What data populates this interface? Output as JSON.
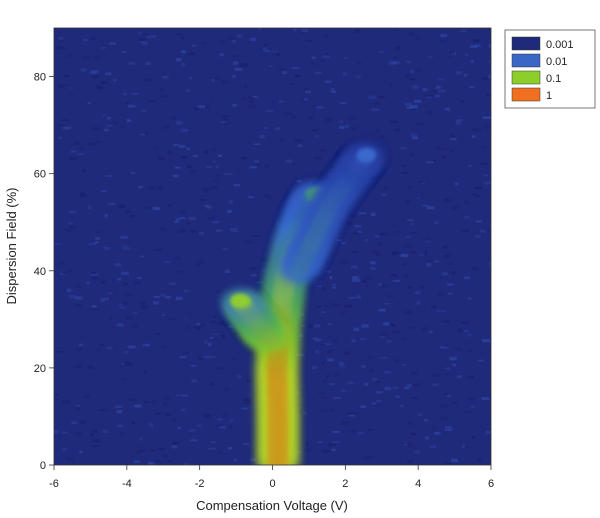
{
  "chart_data": {
    "type": "heatmap",
    "title": "",
    "xlabel": "Compensation Voltage (V)",
    "ylabel": "Dispersion Field (%)",
    "xlim": [
      -6,
      6
    ],
    "ylim": [
      0,
      90
    ],
    "xticks": [
      -6,
      -4,
      -2,
      0,
      2,
      4,
      6
    ],
    "yticks": [
      0,
      20,
      40,
      60,
      80
    ],
    "background_intensity": 0.001,
    "log_scale": true,
    "legend": {
      "position": "top-right",
      "entries": [
        {
          "label": "0.001",
          "color": "#1f2a7a"
        },
        {
          "label": "0.01",
          "color": "#3a66c8"
        },
        {
          "label": "0.1",
          "color": "#8ccf2a"
        },
        {
          "label": "1",
          "color": "#f07020"
        }
      ]
    },
    "branches": [
      {
        "name": "",
        "points": [
          {
            "x": 0.15,
            "y": 0,
            "intensity": 1.0
          },
          {
            "x": 0.15,
            "y": 10,
            "intensity": 1.0
          },
          {
            "x": 0.12,
            "y": 20,
            "intensity": 1.0
          },
          {
            "x": 0.2,
            "y": 30,
            "intensity": 0.5
          },
          {
            "x": 0.35,
            "y": 38,
            "intensity": 0.2
          },
          {
            "x": 0.6,
            "y": 46,
            "intensity": 0.1
          },
          {
            "x": 0.9,
            "y": 52,
            "intensity": 0.05
          },
          {
            "x": 1.2,
            "y": 56,
            "intensity": 0.03
          }
        ]
      },
      {
        "name": "",
        "points": [
          {
            "x": -0.1,
            "y": 26,
            "intensity": 0.6
          },
          {
            "x": -0.5,
            "y": 30,
            "intensity": 0.3
          },
          {
            "x": -0.9,
            "y": 34,
            "intensity": 0.1
          }
        ]
      },
      {
        "name": "",
        "points": [
          {
            "x": 0.7,
            "y": 40,
            "intensity": 0.05
          },
          {
            "x": 1.1,
            "y": 46,
            "intensity": 0.03
          },
          {
            "x": 1.6,
            "y": 54,
            "intensity": 0.02
          },
          {
            "x": 2.2,
            "y": 60,
            "intensity": 0.012
          },
          {
            "x": 2.6,
            "y": 64,
            "intensity": 0.008
          }
        ]
      }
    ]
  }
}
